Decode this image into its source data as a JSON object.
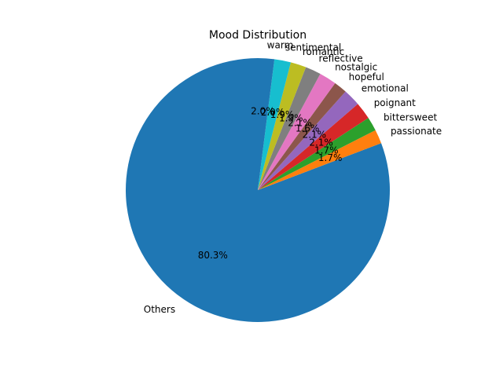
{
  "chart_data": {
    "type": "pie",
    "title": "Mood Distribution",
    "start_angle_deg": 90,
    "direction": "counterclockwise",
    "slices": [
      {
        "label": "Others",
        "value": 80.3,
        "pct_label": "80.3%",
        "color": "#1f77b4"
      },
      {
        "label": "passionate",
        "value": 1.7,
        "pct_label": "1.7%",
        "color": "#ff7f0e"
      },
      {
        "label": "bittersweet",
        "value": 1.7,
        "pct_label": "1.7%",
        "color": "#2ca02c"
      },
      {
        "label": "poignant",
        "value": 2.1,
        "pct_label": "2.1%",
        "color": "#d62728"
      },
      {
        "label": "emotional",
        "value": 2.1,
        "pct_label": "2.1%",
        "color": "#9467bd"
      },
      {
        "label": "hopeful",
        "value": 1.6,
        "pct_label": "1.6%",
        "color": "#8c564b"
      },
      {
        "label": "nostalgic",
        "value": 2.1,
        "pct_label": "2.1%",
        "color": "#e377c2"
      },
      {
        "label": "reflective",
        "value": 1.9,
        "pct_label": "1.9%",
        "color": "#7f7f7f"
      },
      {
        "label": "romantic",
        "value": 1.9,
        "pct_label": "1.9%",
        "color": "#bcbd22"
      },
      {
        "label": "sentimental",
        "value": 2.0,
        "pct_label": "2.0%",
        "color": "#17becf"
      },
      {
        "label": "warm",
        "value": 2.0,
        "pct_label": "2.0%",
        "color": "#1f77b4"
      }
    ]
  }
}
